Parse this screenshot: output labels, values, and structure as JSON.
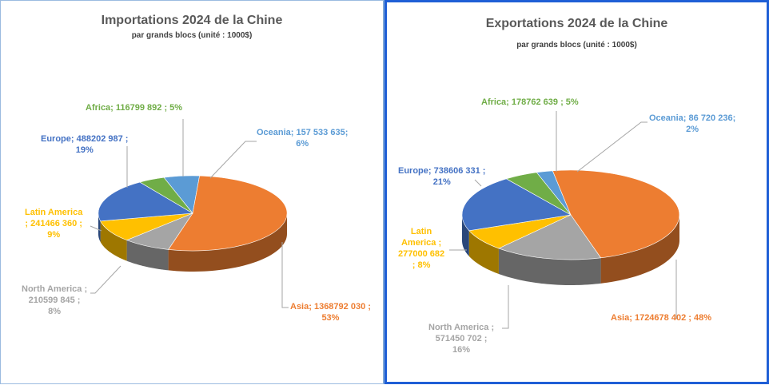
{
  "chart_data": [
    {
      "type": "pie",
      "title": "Importations 2024 de la Chine",
      "subtitle": "par grands blocs (unité : 1000$)",
      "slices": [
        {
          "name": "Oceania",
          "value": 157533635,
          "percent": 6,
          "color": "#5b9bd5",
          "label_l1": "Oceania; 157 533 635;",
          "label_l2": "6%"
        },
        {
          "name": "Asia",
          "value": 1368792030,
          "percent": 53,
          "color": "#ed7d31",
          "label_l1": "Asia; 1368792 030 ;",
          "label_l2": "53%"
        },
        {
          "name": "North America",
          "value": 210599845,
          "percent": 8,
          "color": "#a5a5a5",
          "label_l1": "North America ;",
          "label_l2": "210599 845 ;",
          "label_l3": "8%"
        },
        {
          "name": "Latin America",
          "value": 241466360,
          "percent": 9,
          "color": "#ffc000",
          "label_l1": "Latin America",
          "label_l2": "; 241466 360 ;",
          "label_l3": "9%"
        },
        {
          "name": "Europe",
          "value": 488202987,
          "percent": 19,
          "color": "#4472c4",
          "label_l1": "Europe; 488202 987 ;",
          "label_l2": "19%"
        },
        {
          "name": "Africa",
          "value": 116799892,
          "percent": 5,
          "color": "#70ad47",
          "label_l1": "Africa; 116799 892 ; 5%"
        }
      ]
    },
    {
      "type": "pie",
      "title": "Exportations 2024 de la Chine",
      "subtitle": "par grands blocs (unité : 1000$)",
      "slices": [
        {
          "name": "Oceania",
          "value": 86720236,
          "percent": 2,
          "color": "#5b9bd5",
          "label_l1": "Oceania; 86 720 236;",
          "label_l2": "2%"
        },
        {
          "name": "Asia",
          "value": 1724678402,
          "percent": 48,
          "color": "#ed7d31",
          "label_l1": "Asia; 1724678 402 ; 48%"
        },
        {
          "name": "North America",
          "value": 571450702,
          "percent": 16,
          "color": "#a5a5a5",
          "label_l1": "North America ;",
          "label_l2": "571450 702 ;",
          "label_l3": "16%"
        },
        {
          "name": "Latin America",
          "value": 277000682,
          "percent": 8,
          "color": "#ffc000",
          "label_l1": "Latin",
          "label_l2": "America ;",
          "label_l3": "277000 682",
          "label_l4": "; 8%"
        },
        {
          "name": "Europe",
          "value": 738606331,
          "percent": 21,
          "color": "#4472c4",
          "label_l1": "Europe; 738606 331 ;",
          "label_l2": "21%"
        },
        {
          "name": "Africa",
          "value": 178762639,
          "percent": 5,
          "color": "#70ad47",
          "label_l1": "Africa; 178762 639 ; 5%"
        }
      ]
    }
  ]
}
